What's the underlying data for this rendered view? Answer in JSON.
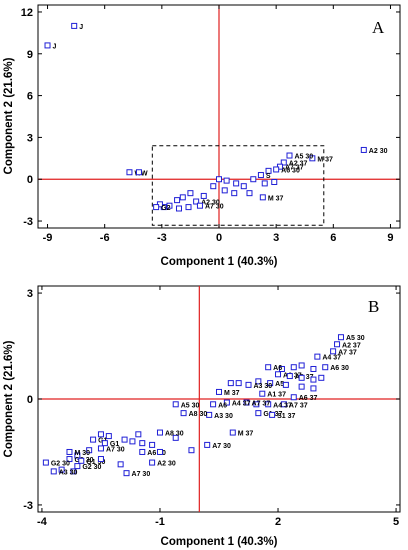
{
  "chart_data": [
    {
      "type": "scatter",
      "panel_letter": "A",
      "xlabel": "Component 1 (40.3%)",
      "ylabel": "Component 2 (21.6%)",
      "xlim": [
        -9.5,
        9.5
      ],
      "ylim": [
        -3.5,
        12.5
      ],
      "xticks": [
        -9,
        -6,
        -3,
        0,
        3,
        6,
        9
      ],
      "yticks": [
        -3,
        0,
        3,
        6,
        9,
        12
      ],
      "reference_lines": {
        "x": 0,
        "y": 0,
        "color": "#e02020"
      },
      "zoom_box": {
        "x": [
          -3.5,
          5.5
        ],
        "y": [
          -3.3,
          2.4
        ]
      },
      "marker_color": "#1f1fd6",
      "points": [
        {
          "x": -9.0,
          "y": 9.6,
          "label": "J"
        },
        {
          "x": -7.6,
          "y": 11.0,
          "label": "J"
        },
        {
          "x": -4.7,
          "y": 0.5,
          "label": "WW"
        },
        {
          "x": -4.2,
          "y": 0.5,
          "label": ""
        },
        {
          "x": 7.6,
          "y": 2.1,
          "label": "A2 30"
        },
        {
          "x": 4.9,
          "y": 1.5,
          "label": "M 37"
        },
        {
          "x": 3.7,
          "y": 1.7,
          "label": "A5 30"
        },
        {
          "x": 3.4,
          "y": 1.2,
          "label": "A2 37"
        },
        {
          "x": 3.2,
          "y": 0.9,
          "label": "A7 37"
        },
        {
          "x": 3.0,
          "y": 0.7,
          "label": "A6 30"
        },
        {
          "x": 2.6,
          "y": 0.6,
          "label": ""
        },
        {
          "x": 2.2,
          "y": 0.3,
          "label": "S"
        },
        {
          "x": 1.8,
          "y": 0.0,
          "label": ""
        },
        {
          "x": 2.4,
          "y": -0.3,
          "label": ""
        },
        {
          "x": 2.9,
          "y": -0.2,
          "label": ""
        },
        {
          "x": 1.3,
          "y": -0.5,
          "label": ""
        },
        {
          "x": 0.9,
          "y": -0.3,
          "label": ""
        },
        {
          "x": 0.4,
          "y": -0.1,
          "label": ""
        },
        {
          "x": 0.0,
          "y": 0.0,
          "label": ""
        },
        {
          "x": 1.6,
          "y": -1.0,
          "label": ""
        },
        {
          "x": 2.3,
          "y": -1.3,
          "label": "M 37"
        },
        {
          "x": 0.8,
          "y": -1.0,
          "label": ""
        },
        {
          "x": 0.3,
          "y": -0.8,
          "label": ""
        },
        {
          "x": -0.3,
          "y": -0.5,
          "label": ""
        },
        {
          "x": -0.8,
          "y": -1.2,
          "label": ""
        },
        {
          "x": -1.5,
          "y": -1.0,
          "label": ""
        },
        {
          "x": -1.9,
          "y": -1.3,
          "label": ""
        },
        {
          "x": -2.2,
          "y": -1.5,
          "label": ""
        },
        {
          "x": -1.2,
          "y": -1.6,
          "label": "A2 30"
        },
        {
          "x": -1.0,
          "y": -1.9,
          "label": "A7 30"
        },
        {
          "x": -2.6,
          "y": -1.9,
          "label": ""
        },
        {
          "x": -2.9,
          "y": -2.0,
          "label": ""
        },
        {
          "x": -3.1,
          "y": -1.8,
          "label": ""
        },
        {
          "x": -3.3,
          "y": -2.0,
          "label": "G2"
        },
        {
          "x": -2.1,
          "y": -2.1,
          "label": ""
        },
        {
          "x": -1.6,
          "y": -2.0,
          "label": ""
        }
      ]
    },
    {
      "type": "scatter",
      "panel_letter": "B",
      "xlabel": "Component 1 (40.3%)",
      "ylabel": "Component 2 (21.6%)",
      "xlim": [
        -4.1,
        5.1
      ],
      "ylim": [
        -3.2,
        3.2
      ],
      "xticks": [
        -4,
        -1,
        2,
        5
      ],
      "yticks": [
        -3,
        0,
        3
      ],
      "reference_lines": {
        "x": 0,
        "y": 0,
        "color": "#e02020"
      },
      "marker_color": "#1f1fd6",
      "points": [
        {
          "x": 3.6,
          "y": 1.75,
          "label": "A5 30"
        },
        {
          "x": 3.5,
          "y": 1.55,
          "label": "A2 37"
        },
        {
          "x": 3.4,
          "y": 1.35,
          "label": "A7 37"
        },
        {
          "x": 3.0,
          "y": 1.2,
          "label": "A4 37"
        },
        {
          "x": 3.2,
          "y": 0.9,
          "label": "A6 30"
        },
        {
          "x": 2.9,
          "y": 0.85,
          "label": ""
        },
        {
          "x": 2.6,
          "y": 0.95,
          "label": ""
        },
        {
          "x": 2.4,
          "y": 0.9,
          "label": ""
        },
        {
          "x": 2.1,
          "y": 0.85,
          "label": ""
        },
        {
          "x": 1.75,
          "y": 0.9,
          "label": "A6"
        },
        {
          "x": 2.0,
          "y": 0.7,
          "label": "A6 37"
        },
        {
          "x": 2.3,
          "y": 0.65,
          "label": "A8 37"
        },
        {
          "x": 2.6,
          "y": 0.6,
          "label": ""
        },
        {
          "x": 2.9,
          "y": 0.55,
          "label": ""
        },
        {
          "x": 3.1,
          "y": 0.6,
          "label": ""
        },
        {
          "x": 1.8,
          "y": 0.45,
          "label": "A5"
        },
        {
          "x": 1.5,
          "y": 0.5,
          "label": ""
        },
        {
          "x": 1.25,
          "y": 0.4,
          "label": "A3 30"
        },
        {
          "x": 1.0,
          "y": 0.45,
          "label": ""
        },
        {
          "x": 0.8,
          "y": 0.45,
          "label": ""
        },
        {
          "x": 2.2,
          "y": 0.4,
          "label": ""
        },
        {
          "x": 2.6,
          "y": 0.35,
          "label": ""
        },
        {
          "x": 2.9,
          "y": 0.3,
          "label": ""
        },
        {
          "x": 2.4,
          "y": 0.05,
          "label": "A6 37"
        },
        {
          "x": 2.15,
          "y": -0.15,
          "label": "A7 37"
        },
        {
          "x": 1.75,
          "y": -0.15,
          "label": "A4 37"
        },
        {
          "x": 1.45,
          "y": -0.15,
          "label": ""
        },
        {
          "x": 1.2,
          "y": -0.1,
          "label": "A7 37"
        },
        {
          "x": 1.6,
          "y": 0.15,
          "label": "A1 37"
        },
        {
          "x": 1.5,
          "y": -0.4,
          "label": "G1 37"
        },
        {
          "x": 1.85,
          "y": -0.45,
          "label": "S1 37"
        },
        {
          "x": 0.7,
          "y": -0.1,
          "label": "A4 37"
        },
        {
          "x": 0.5,
          "y": 0.2,
          "label": "M 37"
        },
        {
          "x": 0.25,
          "y": -0.45,
          "label": "A3 30"
        },
        {
          "x": 0.35,
          "y": -0.15,
          "label": "A6"
        },
        {
          "x": -0.6,
          "y": -0.15,
          "label": "A5 30"
        },
        {
          "x": -0.4,
          "y": -0.4,
          "label": "A8 30"
        },
        {
          "x": 0.85,
          "y": -0.95,
          "label": "M 37"
        },
        {
          "x": 0.2,
          "y": -1.3,
          "label": "A7 30"
        },
        {
          "x": -0.6,
          "y": -1.1,
          "label": ""
        },
        {
          "x": -1.0,
          "y": -0.95,
          "label": "A8 30"
        },
        {
          "x": -1.2,
          "y": -1.3,
          "label": ""
        },
        {
          "x": -1.45,
          "y": -1.25,
          "label": ""
        },
        {
          "x": -1.7,
          "y": -1.2,
          "label": ""
        },
        {
          "x": -1.9,
          "y": -1.15,
          "label": ""
        },
        {
          "x": -1.45,
          "y": -1.5,
          "label": "A6 30"
        },
        {
          "x": -1.55,
          "y": -1.0,
          "label": ""
        },
        {
          "x": -2.5,
          "y": -1.0,
          "label": ""
        },
        {
          "x": -2.3,
          "y": -1.05,
          "label": ""
        },
        {
          "x": -2.7,
          "y": -1.15,
          "label": "G1"
        },
        {
          "x": -2.4,
          "y": -1.25,
          "label": "G1"
        },
        {
          "x": -2.5,
          "y": -1.4,
          "label": "A7 30"
        },
        {
          "x": -2.8,
          "y": -1.45,
          "label": ""
        },
        {
          "x": -3.1,
          "y": -1.6,
          "label": ""
        },
        {
          "x": -3.3,
          "y": -1.5,
          "label": "M 30"
        },
        {
          "x": -3.3,
          "y": -1.7,
          "label": "G2 30"
        },
        {
          "x": -3.0,
          "y": -1.75,
          "label": "G1 30"
        },
        {
          "x": -3.9,
          "y": -1.8,
          "label": "G2 30"
        },
        {
          "x": -3.1,
          "y": -1.9,
          "label": "G2 30"
        },
        {
          "x": -3.2,
          "y": -2.05,
          "label": ""
        },
        {
          "x": -3.5,
          "y": -2.0,
          "label": ""
        },
        {
          "x": -3.7,
          "y": -2.05,
          "label": "A3 30"
        },
        {
          "x": -2.5,
          "y": -1.7,
          "label": ""
        },
        {
          "x": -2.0,
          "y": -1.85,
          "label": ""
        },
        {
          "x": -1.2,
          "y": -1.8,
          "label": "A2 30"
        },
        {
          "x": -1.0,
          "y": -1.5,
          "label": ""
        },
        {
          "x": -1.85,
          "y": -2.1,
          "label": "A7 30"
        },
        {
          "x": -0.2,
          "y": -1.45,
          "label": ""
        }
      ]
    }
  ]
}
